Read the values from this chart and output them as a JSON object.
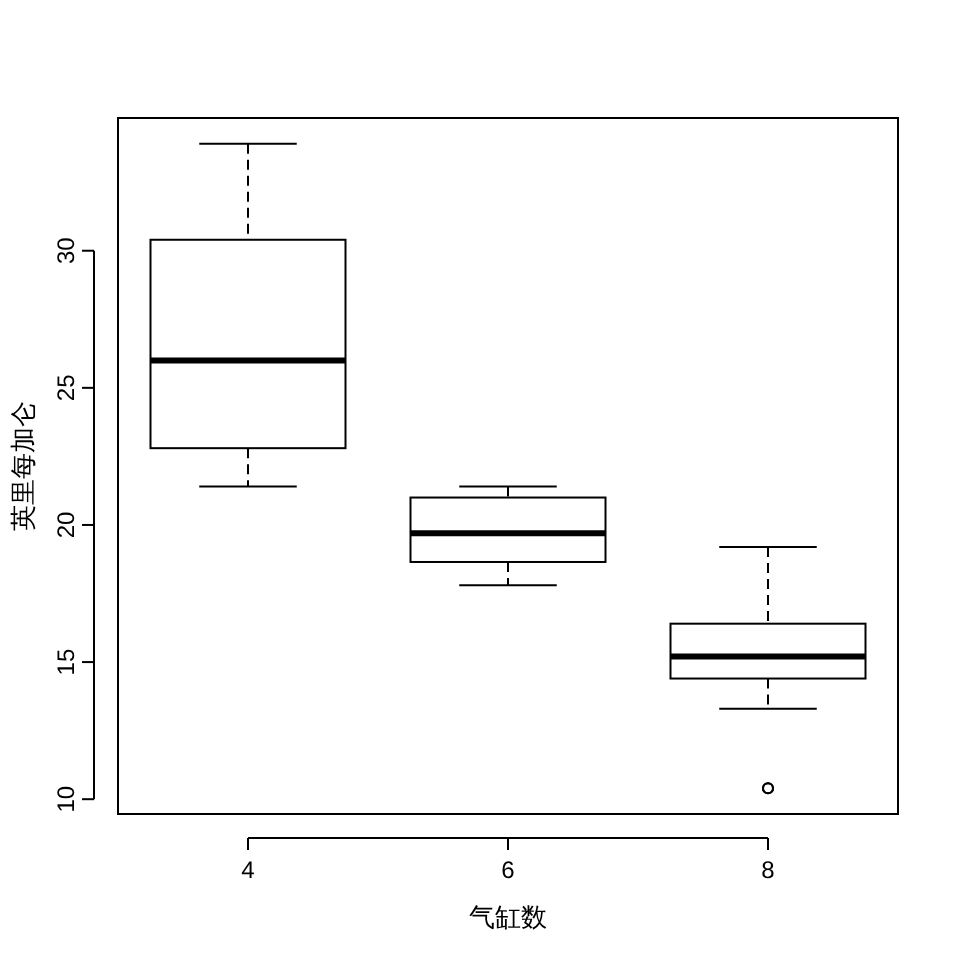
{
  "chart_data": {
    "type": "box",
    "xlabel": "气缸数",
    "ylabel": "英里每加仑",
    "categories": [
      "4",
      "6",
      "8"
    ],
    "boxes": [
      {
        "low": 21.4,
        "q1": 22.8,
        "median": 26.0,
        "q3": 30.4,
        "high": 33.9
      },
      {
        "low": 17.8,
        "q1": 18.65,
        "median": 19.7,
        "q3": 21.0,
        "high": 21.4
      },
      {
        "low": 13.3,
        "q1": 14.4,
        "median": 15.2,
        "q3": 16.4,
        "high": 19.2,
        "outliers": [
          10.4,
          10.4
        ]
      }
    ],
    "ylim": [
      9.46,
      34.84
    ],
    "yticks": [
      10,
      15,
      20,
      25,
      30
    ]
  }
}
